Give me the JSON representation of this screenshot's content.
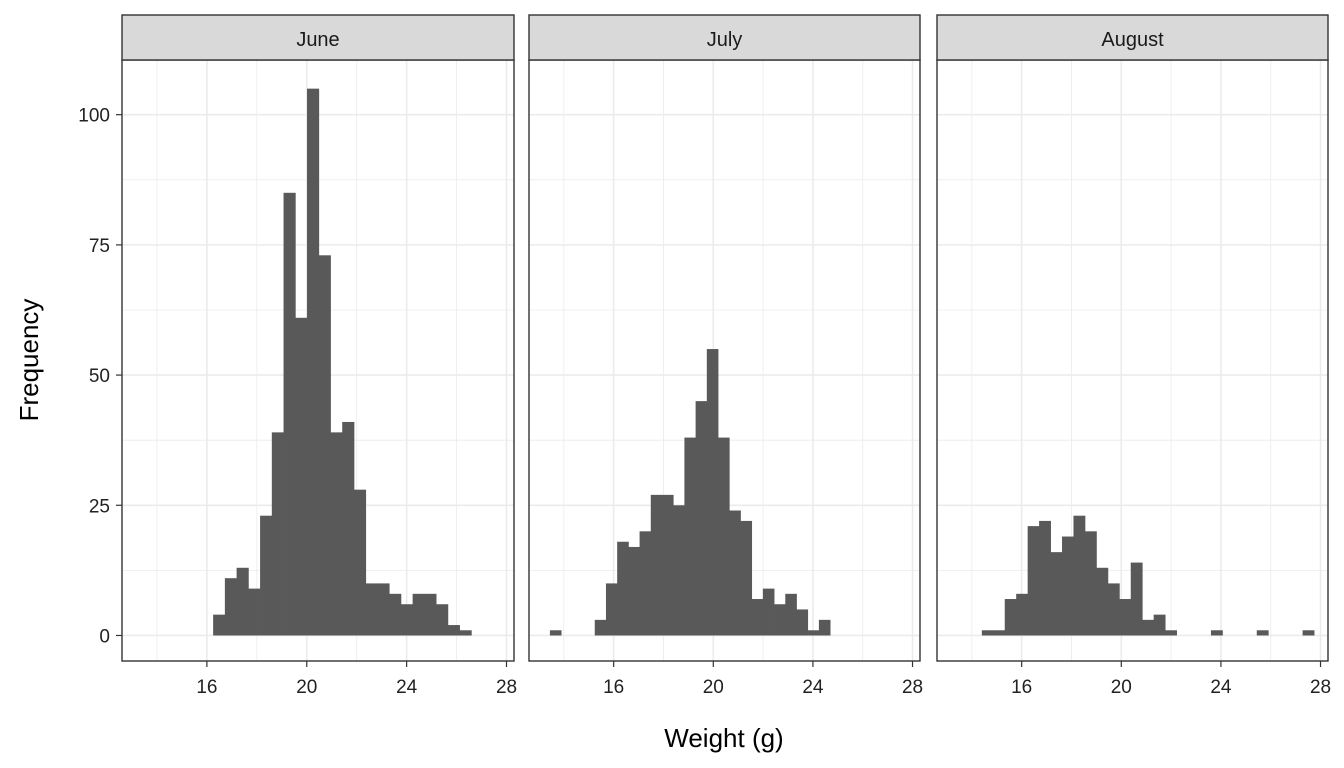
{
  "chart_data": {
    "type": "bar",
    "xlabel": "Weight (g)",
    "ylabel": "Frequency",
    "xlim": [
      12.6,
      28.3
    ],
    "ylim": [
      -4.9,
      110.5
    ],
    "x_ticks": [
      16,
      20,
      24,
      28
    ],
    "y_ticks": [
      0,
      25,
      50,
      75,
      100
    ],
    "x_minor_ticks": [
      14,
      18,
      22,
      26
    ],
    "y_minor_ticks": [
      12.5,
      37.5,
      62.5,
      87.5
    ],
    "grid": true,
    "bar_color": "#595959",
    "strip_fill": "#d9d9d9",
    "grid_color": "#ebebeb",
    "facets": [
      {
        "name": "June",
        "bars": [
          {
            "x0": 16.25,
            "x1": 16.72,
            "value": 4
          },
          {
            "x0": 16.72,
            "x1": 17.19,
            "value": 11
          },
          {
            "x0": 17.19,
            "x1": 17.66,
            "value": 13
          },
          {
            "x0": 17.66,
            "x1": 18.13,
            "value": 9
          },
          {
            "x0": 18.13,
            "x1": 18.6,
            "value": 23
          },
          {
            "x0": 18.6,
            "x1": 19.07,
            "value": 39
          },
          {
            "x0": 19.07,
            "x1": 19.54,
            "value": 85
          },
          {
            "x0": 19.54,
            "x1": 20.01,
            "value": 61
          },
          {
            "x0": 20.01,
            "x1": 20.48,
            "value": 105
          },
          {
            "x0": 20.48,
            "x1": 20.95,
            "value": 73
          },
          {
            "x0": 20.95,
            "x1": 21.42,
            "value": 39
          },
          {
            "x0": 21.42,
            "x1": 21.89,
            "value": 41
          },
          {
            "x0": 21.89,
            "x1": 22.36,
            "value": 28
          },
          {
            "x0": 22.36,
            "x1": 22.83,
            "value": 10
          },
          {
            "x0": 22.83,
            "x1": 23.3,
            "value": 10
          },
          {
            "x0": 23.3,
            "x1": 23.77,
            "value": 8
          },
          {
            "x0": 23.77,
            "x1": 24.24,
            "value": 6
          },
          {
            "x0": 24.24,
            "x1": 24.71,
            "value": 8
          },
          {
            "x0": 24.71,
            "x1": 25.18,
            "value": 8
          },
          {
            "x0": 25.18,
            "x1": 25.65,
            "value": 6
          },
          {
            "x0": 25.65,
            "x1": 26.12,
            "value": 2
          },
          {
            "x0": 26.12,
            "x1": 26.59,
            "value": 1
          }
        ]
      },
      {
        "name": "July",
        "bars": [
          {
            "x0": 13.44,
            "x1": 13.89,
            "value": 1
          },
          {
            "x0": 15.24,
            "x1": 15.69,
            "value": 3
          },
          {
            "x0": 15.69,
            "x1": 16.14,
            "value": 10
          },
          {
            "x0": 16.14,
            "x1": 16.59,
            "value": 18
          },
          {
            "x0": 16.59,
            "x1": 17.04,
            "value": 17
          },
          {
            "x0": 17.04,
            "x1": 17.49,
            "value": 20
          },
          {
            "x0": 17.49,
            "x1": 17.94,
            "value": 27
          },
          {
            "x0": 17.94,
            "x1": 18.39,
            "value": 27
          },
          {
            "x0": 18.39,
            "x1": 18.84,
            "value": 25
          },
          {
            "x0": 18.84,
            "x1": 19.29,
            "value": 38
          },
          {
            "x0": 19.29,
            "x1": 19.74,
            "value": 45
          },
          {
            "x0": 19.74,
            "x1": 20.19,
            "value": 55
          },
          {
            "x0": 20.19,
            "x1": 20.64,
            "value": 38
          },
          {
            "x0": 20.64,
            "x1": 21.09,
            "value": 24
          },
          {
            "x0": 21.09,
            "x1": 21.54,
            "value": 22
          },
          {
            "x0": 21.54,
            "x1": 21.99,
            "value": 7
          },
          {
            "x0": 21.99,
            "x1": 22.44,
            "value": 9
          },
          {
            "x0": 22.44,
            "x1": 22.89,
            "value": 6
          },
          {
            "x0": 22.89,
            "x1": 23.34,
            "value": 8
          },
          {
            "x0": 23.34,
            "x1": 23.79,
            "value": 5
          },
          {
            "x0": 23.79,
            "x1": 24.24,
            "value": 1
          },
          {
            "x0": 24.24,
            "x1": 24.69,
            "value": 3
          }
        ]
      },
      {
        "name": "August",
        "bars": [
          {
            "x0": 14.4,
            "x1": 14.86,
            "value": 1
          },
          {
            "x0": 14.86,
            "x1": 15.32,
            "value": 1
          },
          {
            "x0": 15.32,
            "x1": 15.78,
            "value": 7
          },
          {
            "x0": 15.78,
            "x1": 16.24,
            "value": 8
          },
          {
            "x0": 16.24,
            "x1": 16.7,
            "value": 21
          },
          {
            "x0": 16.7,
            "x1": 17.16,
            "value": 22
          },
          {
            "x0": 17.16,
            "x1": 17.62,
            "value": 16
          },
          {
            "x0": 17.62,
            "x1": 18.08,
            "value": 19
          },
          {
            "x0": 18.08,
            "x1": 18.54,
            "value": 23
          },
          {
            "x0": 18.54,
            "x1": 19.0,
            "value": 20
          },
          {
            "x0": 19.0,
            "x1": 19.46,
            "value": 13
          },
          {
            "x0": 19.46,
            "x1": 19.92,
            "value": 10
          },
          {
            "x0": 19.92,
            "x1": 20.38,
            "value": 7
          },
          {
            "x0": 20.38,
            "x1": 20.84,
            "value": 14
          },
          {
            "x0": 20.84,
            "x1": 21.3,
            "value": 3
          },
          {
            "x0": 21.3,
            "x1": 21.76,
            "value": 4
          },
          {
            "x0": 21.76,
            "x1": 22.22,
            "value": 1
          },
          {
            "x0": 23.6,
            "x1": 24.06,
            "value": 1
          },
          {
            "x0": 25.44,
            "x1": 25.9,
            "value": 1
          },
          {
            "x0": 27.28,
            "x1": 27.74,
            "value": 1
          }
        ]
      }
    ]
  }
}
